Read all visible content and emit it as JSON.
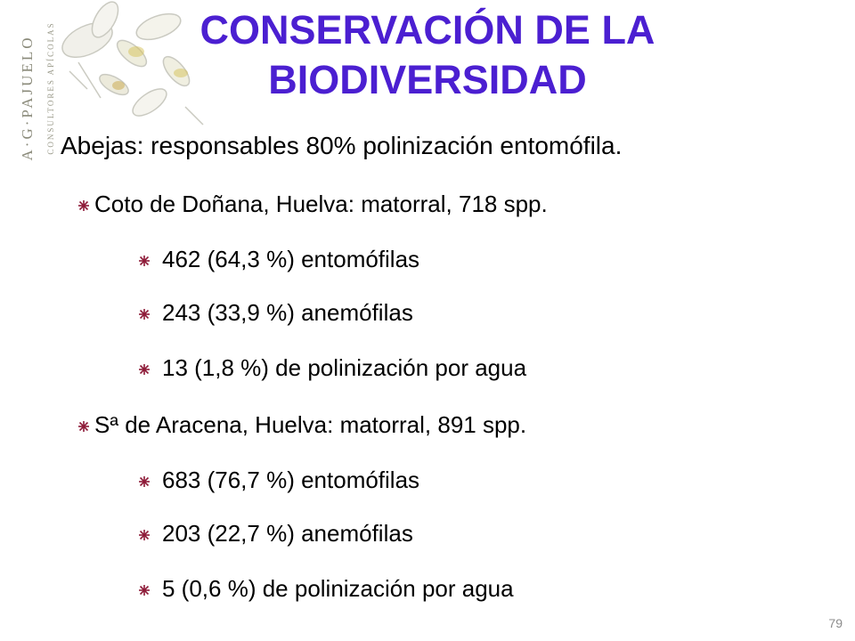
{
  "logo": {
    "name": "A·G·PAJUELO",
    "tagline": "CONSULTORES APÍCOLAS"
  },
  "title_line1": "CONSERVACIÓN DE LA",
  "title_line2": "BIODIVERSIDAD",
  "subtitle": "Abejas: responsables 80% polinización entomófila.",
  "sites": [
    {
      "heading": "Coto de Doñana, Huelva: matorral, 718 spp.",
      "items": [
        "462 (64,3 %) entomófilas",
        "243 (33,9 %) anemófilas",
        "13 (1,8 %) de polinización por agua"
      ]
    },
    {
      "heading": "Sª de Aracena, Huelva: matorral, 891 spp.",
      "items": [
        "683 (76,7 %) entomófilas",
        "203 (22,7 %) anemófilas",
        "5 (0,6 %) de polinización por agua"
      ]
    }
  ],
  "page_number": "79",
  "colors": {
    "title": "#4b1fd1",
    "bullet": "#8e1b38",
    "page_number": "#8c8c8c"
  },
  "icons": {
    "bullet": "flower-bullet-icon",
    "logo": "bees-illustration"
  }
}
